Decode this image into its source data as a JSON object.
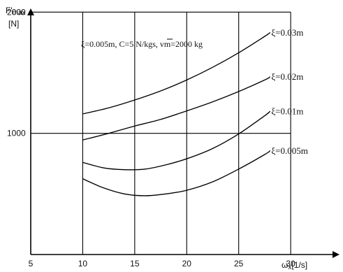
{
  "chart_data": {
    "type": "line",
    "title": "",
    "annotation": "ξ=0.005m,  C=5 N/kgs,  vm=2000 kg",
    "ylabel": {
      "symbol": "F'",
      "subscript": "max",
      "unit": "[N]"
    },
    "xlabel": {
      "symbol": "ω",
      "subscript": "x",
      "unit": "[1/s]"
    },
    "xlim": [
      5,
      31
    ],
    "ylim": [
      0,
      2100
    ],
    "xticks": [
      5,
      10,
      15,
      20,
      25,
      30
    ],
    "xtick_labels": [
      "5",
      "10",
      "15",
      "20",
      "25",
      "30"
    ],
    "yticks": [
      1000,
      2000
    ],
    "ytick_labels": [
      "1000",
      "2000"
    ],
    "grid": {
      "vertical_at": [
        10,
        15,
        20,
        25,
        30
      ],
      "horizontal_at": [
        1000,
        2000
      ],
      "y_top": 2000
    },
    "series": [
      {
        "name": "ξ=0.03m",
        "x": [
          10,
          12.5,
          15,
          17.5,
          20,
          22.5,
          25,
          27.5,
          28
        ],
        "y": [
          1160,
          1210,
          1275,
          1350,
          1440,
          1545,
          1665,
          1800,
          1830
        ]
      },
      {
        "name": "ξ=0.02m",
        "x": [
          10,
          12.5,
          15,
          17.5,
          20,
          22.5,
          25,
          27.5,
          28
        ],
        "y": [
          945,
          1000,
          1060,
          1115,
          1185,
          1260,
          1345,
          1440,
          1465
        ]
      },
      {
        "name": "ξ=0.01m",
        "x": [
          10,
          12,
          14,
          16,
          18,
          20,
          22.5,
          25,
          27.5,
          28
        ],
        "y": [
          760,
          715,
          700,
          705,
          740,
          790,
          875,
          995,
          1145,
          1180
        ]
      },
      {
        "name": "ξ=0.005m",
        "x": [
          10,
          12,
          14,
          16,
          18,
          20,
          22.5,
          25,
          27.5,
          28
        ],
        "y": [
          625,
          550,
          500,
          485,
          500,
          530,
          600,
          705,
          825,
          855
        ]
      }
    ]
  }
}
